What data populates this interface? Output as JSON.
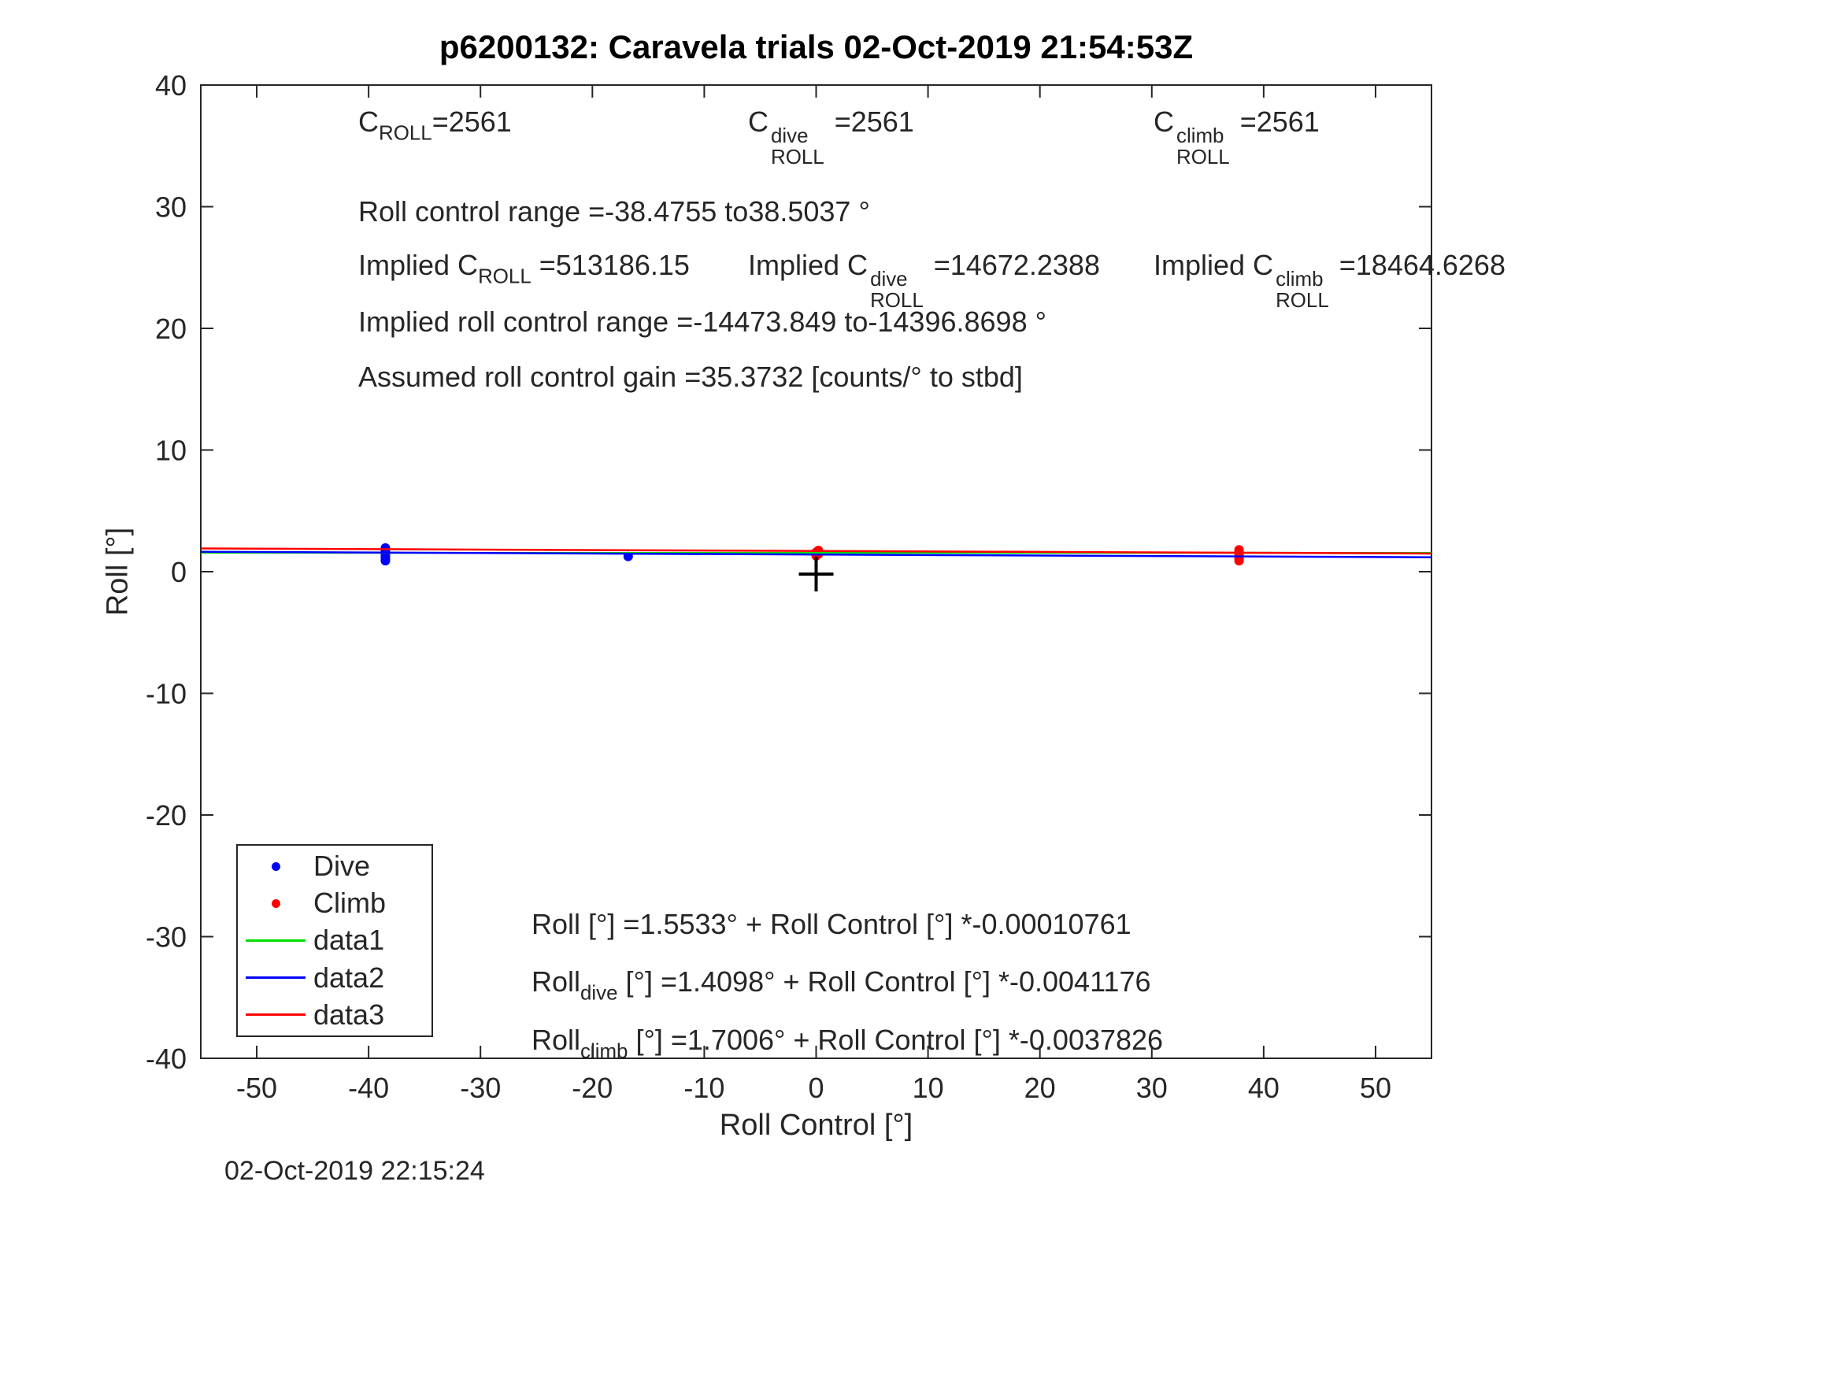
{
  "timestamp": "02-Oct-2019 22:15:24",
  "colors": {
    "axis": "#262626",
    "dive": "#0000ff",
    "climb": "#ff0000",
    "data1": "#00dd00",
    "data2": "#0000ff",
    "data3": "#ff0000",
    "cross_marker": "#000000"
  },
  "annotations": {
    "row1": [
      {
        "pre": "C",
        "sub": "ROLL",
        "post": "=2561"
      },
      {
        "pre": "C",
        "sup": "dive",
        "sub": "ROLL",
        "post": " =2561"
      },
      {
        "pre": "C",
        "sup": "climb",
        "sub": "ROLL",
        "post": " =2561"
      }
    ],
    "row2": "Roll control range =-38.4755 to38.5037 °",
    "row3": [
      {
        "pre": "Implied C",
        "sub": "ROLL",
        "post": " =513186.15"
      },
      {
        "pre": "Implied C",
        "sup": "dive",
        "sub": "ROLL",
        "post": " =14672.2388"
      },
      {
        "pre": "Implied C",
        "sup": "climb",
        "sub": "ROLL",
        "post": " =18464.6268"
      }
    ],
    "row4": "Implied roll control range =-14473.849 to-14396.8698 °",
    "row5": "Assumed roll control gain =35.3732 [counts/° to stbd]"
  },
  "equations": [
    {
      "pre": "Roll [°] =1.5533° + Roll Control [°] *-0.00010761",
      "sub": "",
      "post": ""
    },
    {
      "pre": "Roll",
      "sub": "dive",
      "post": " [°] =1.4098° + Roll Control [°] *-0.0041176"
    },
    {
      "pre": "Roll",
      "sub": "climb",
      "post": " [°] =1.7006° + Roll Control [°] *-0.0037826"
    }
  ],
  "legend": {
    "items": [
      {
        "label": "Dive",
        "type": "dot",
        "color": "#0000ff"
      },
      {
        "label": "Climb",
        "type": "dot",
        "color": "#ff0000"
      },
      {
        "label": "data1",
        "type": "line",
        "color": "#00dd00"
      },
      {
        "label": "data2",
        "type": "line",
        "color": "#0000ff"
      },
      {
        "label": "data3",
        "type": "line",
        "color": "#ff0000"
      }
    ]
  },
  "chart_data": {
    "type": "scatter",
    "title": "p6200132: Caravela trials 02-Oct-2019 21:54:53Z",
    "xlabel": "Roll Control [°]",
    "ylabel": "Roll [°]",
    "xlim": [
      -55,
      55
    ],
    "ylim": [
      -40,
      40
    ],
    "xticks": [
      -50,
      -40,
      -30,
      -20,
      -10,
      0,
      10,
      20,
      30,
      40,
      50
    ],
    "yticks": [
      -40,
      -30,
      -20,
      -10,
      0,
      10,
      20,
      30,
      40
    ],
    "grid": false,
    "legend_position": "lower-left",
    "series": [
      {
        "name": "Dive",
        "type": "scatter",
        "color": "#0000ff",
        "marker_radius": 6,
        "points": [
          [
            -38.5,
            0.9
          ],
          [
            -38.5,
            1.05
          ],
          [
            -38.5,
            1.2
          ],
          [
            -38.5,
            1.35
          ],
          [
            -38.5,
            1.5
          ],
          [
            -38.5,
            1.65
          ],
          [
            -38.5,
            1.8
          ],
          [
            -38.5,
            1.95
          ],
          [
            -16.8,
            1.25
          ]
        ]
      },
      {
        "name": "Climb",
        "type": "scatter",
        "color": "#ff0000",
        "marker_radius": 6,
        "points": [
          [
            0,
            1.3
          ],
          [
            0.2,
            1.45
          ],
          [
            0,
            1.6
          ],
          [
            0.2,
            1.75
          ],
          [
            37.8,
            0.9
          ],
          [
            37.8,
            1.05
          ],
          [
            37.8,
            1.2
          ],
          [
            37.8,
            1.35
          ],
          [
            37.8,
            1.5
          ],
          [
            37.8,
            1.65
          ],
          [
            37.8,
            1.8
          ]
        ]
      },
      {
        "name": "data1",
        "type": "line",
        "color": "#00dd00",
        "intercept": 1.5533,
        "slope": -0.00010761
      },
      {
        "name": "data2",
        "type": "line",
        "color": "#0000ff",
        "intercept": 1.4098,
        "slope": -0.0041176
      },
      {
        "name": "data3",
        "type": "line",
        "color": "#ff0000",
        "intercept": 1.7006,
        "slope": -0.0037826
      }
    ],
    "extra_markers": [
      {
        "type": "plus",
        "x": 0,
        "y": -0.2,
        "color": "#000000"
      }
    ]
  }
}
